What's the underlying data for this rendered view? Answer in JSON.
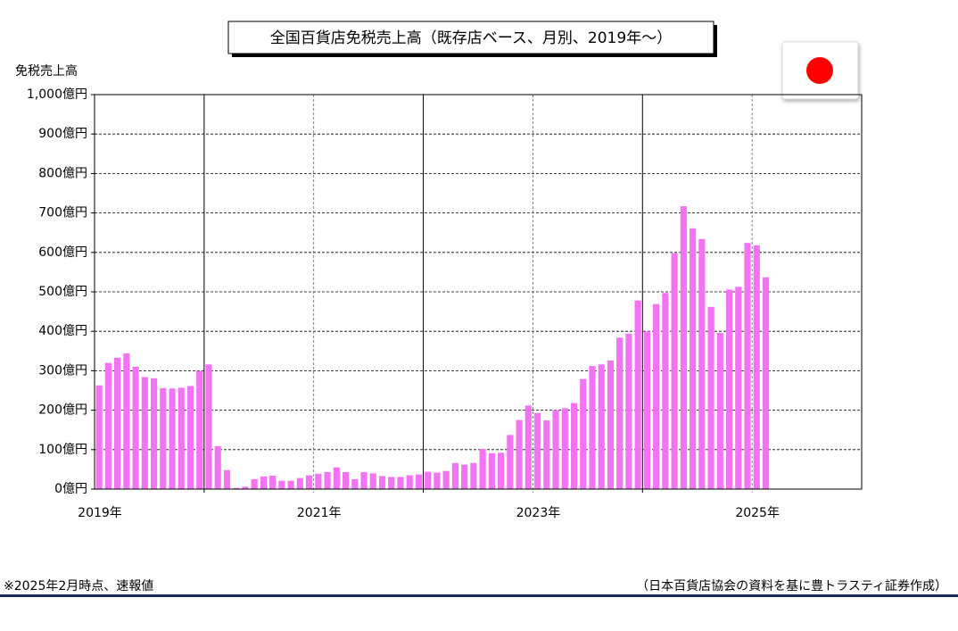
{
  "chart_data": {
    "type": "bar",
    "title": "全国百貨店免税売上高（既存店ベース、月別、2019年～）",
    "y_label": "免税売上高",
    "note": "※2025年2月時点、速報値",
    "source": "（日本百貨店協会の資料を基に豊トラスティ証券作成）",
    "color": "#f472f4",
    "categories": [
      "2019年",
      null,
      null,
      null,
      null,
      null,
      null,
      null,
      null,
      null,
      null,
      null,
      null,
      null,
      null,
      null,
      null,
      null,
      null,
      null,
      null,
      null,
      null,
      null,
      "2021年",
      null,
      null,
      null,
      null,
      null,
      null,
      null,
      null,
      null,
      null,
      null,
      null,
      null,
      null,
      null,
      null,
      null,
      null,
      null,
      null,
      null,
      null,
      null,
      "2023年",
      null,
      null,
      null,
      null,
      null,
      null,
      null,
      null,
      null,
      null,
      null,
      null,
      null,
      null,
      null,
      null,
      null,
      null,
      null,
      null,
      null,
      null,
      null,
      "2025年",
      null,
      null,
      null,
      null,
      null,
      null,
      null,
      null,
      null,
      null,
      null
    ],
    "values": [
      263,
      320,
      333,
      344,
      310,
      284,
      281,
      256,
      255,
      257,
      261,
      300,
      316,
      109,
      48,
      3,
      6,
      25,
      32,
      34,
      21,
      21,
      28,
      35,
      39,
      43,
      55,
      43,
      25,
      43,
      40,
      33,
      31,
      31,
      35,
      37,
      44,
      42,
      46,
      66,
      62,
      66,
      102,
      91,
      92,
      137,
      175,
      212,
      193,
      174,
      200,
      205,
      218,
      279,
      312,
      316,
      326,
      384,
      394,
      478,
      400,
      469,
      497,
      598,
      717,
      661,
      634,
      462,
      396,
      506,
      513,
      624,
      618,
      537,
      null,
      null,
      null,
      null,
      null,
      null,
      null,
      null,
      null,
      null
    ],
    "ylim": [
      0,
      1000
    ],
    "yticks": [
      {
        "value": 0,
        "label": "0億円"
      },
      {
        "value": 100,
        "label": "100億円"
      },
      {
        "value": 200,
        "label": "200億円"
      },
      {
        "value": 300,
        "label": "300億円"
      },
      {
        "value": 400,
        "label": "400億円"
      },
      {
        "value": 500,
        "label": "500億円"
      },
      {
        "value": 600,
        "label": "600億円"
      },
      {
        "value": 700,
        "label": "700億円"
      },
      {
        "value": 800,
        "label": "800億円"
      },
      {
        "value": 900,
        "label": "900億円"
      },
      {
        "value": 1000,
        "label": "1,000億円"
      }
    ],
    "grid": true
  }
}
